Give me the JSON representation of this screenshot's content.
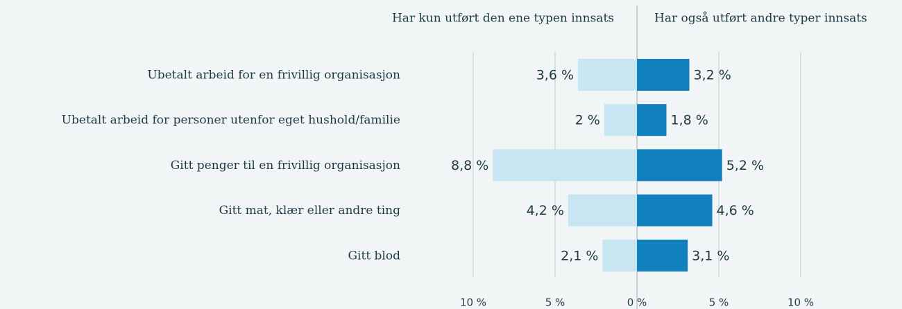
{
  "chart_data": {
    "type": "diverging-bar",
    "categories": [
      "Ubetalt arbeid for en frivillig organisasjon",
      "Ubetalt arbeid for personer utenfor eget hushold/familie",
      "Gitt penger til en frivillig organisasjon",
      "Gitt mat, klær eller andre ting",
      "Gitt blod"
    ],
    "series": [
      {
        "name": "Har kun utført den ene typen innsats",
        "color": "#c8e6f2",
        "values": [
          3.6,
          2,
          8.8,
          4.2,
          2.1
        ],
        "value_labels": [
          "3,6 %",
          "2 %",
          "8,8 %",
          "4,2 %",
          "2,1 %"
        ]
      },
      {
        "name": "Har også utført andre typer innsats",
        "color": "#1380be",
        "values": [
          3.2,
          1.8,
          5.2,
          4.6,
          3.1
        ],
        "value_labels": [
          "3,2 %",
          "1,8 %",
          "5,2 %",
          "4,6 %",
          "3,1 %"
        ]
      }
    ],
    "xlim": [
      -10,
      10
    ],
    "xticks": [
      {
        "value": -10,
        "label": "10 %"
      },
      {
        "value": -5,
        "label": "5 %"
      },
      {
        "value": 0,
        "label": "0 %"
      },
      {
        "value": 5,
        "label": "5 %"
      },
      {
        "value": 10,
        "label": "10 %"
      }
    ],
    "grid": true
  }
}
